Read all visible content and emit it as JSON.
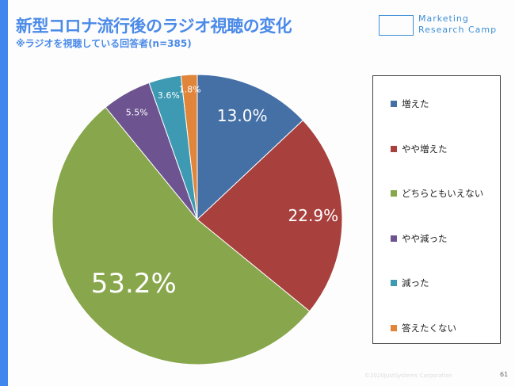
{
  "header": {
    "title": "新型コロナ流行後のラジオ視聴の変化",
    "subtitle": "※ラジオを視聴している回答者(n=385)",
    "logo_line1": "Marketing",
    "logo_line2": "Research Camp"
  },
  "footer": {
    "copyright": "©2020JustSystems Corporation",
    "page_number": "61"
  },
  "chart_data": {
    "type": "pie",
    "title": "新型コロナ流行後のラジオ視聴の変化",
    "legend_position": "right",
    "categories": [
      "増えた",
      "やや増えた",
      "どちらともいえない",
      "やや減った",
      "減った",
      "答えたくない"
    ],
    "values": [
      13.0,
      22.9,
      53.2,
      5.5,
      3.6,
      1.8
    ],
    "labels": [
      "13.0%",
      "22.9%",
      "53.2%",
      "5.5%",
      "3.6%",
      "1.8%"
    ],
    "colors": [
      "#4470a6",
      "#a8413e",
      "#88a64b",
      "#6d5490",
      "#3d9ab2",
      "#e0853a"
    ]
  }
}
